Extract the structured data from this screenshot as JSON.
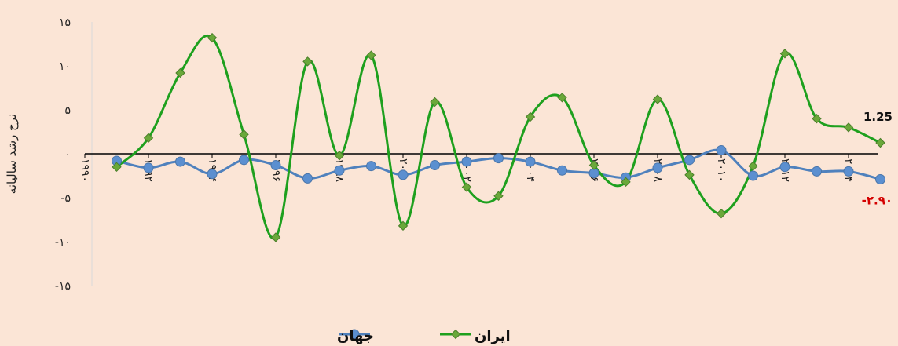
{
  "chart_data": {
    "type": "line",
    "ylabel": "نرخ رشد سالیانه",
    "ylim": [
      -15,
      15
    ],
    "y_ticks": [
      "۱۵",
      "۱۰",
      "۵",
      "۰",
      "-۵",
      "-۱۰",
      "-۱۵"
    ],
    "x_tick_labels": [
      "۱۹۹۰",
      "۱۹۹۲",
      "۱۹۹۴",
      "۱۹۹۶",
      "۱۹۹۸",
      "۲۰۰۰",
      "۲۰۰۲",
      "۲۰۰۴",
      "۲۰۰۶",
      "۲۰۰۸",
      "۲۰۱۰",
      "۲۰۱۲",
      "۲۰۱۴"
    ],
    "x": [
      1991,
      1992,
      1993,
      1994,
      1995,
      1996,
      1997,
      1998,
      1999,
      2000,
      2001,
      2002,
      2003,
      2004,
      2005,
      2006,
      2007,
      2008,
      2009,
      2010,
      2011,
      2012,
      2013,
      2014,
      2015
    ],
    "grid": false,
    "legend_position": "bottom",
    "series": [
      {
        "name": "ایران",
        "color": "#1ea01e",
        "marker_color": "#6aa83a",
        "marker": "diamond",
        "values": [
          -1.5,
          1.8,
          9.2,
          13.2,
          2.2,
          -9.5,
          10.5,
          -0.2,
          11.2,
          -8.2,
          5.9,
          -3.8,
          -4.8,
          4.2,
          6.4,
          -1.3,
          -3.2,
          6.2,
          -2.4,
          -6.8,
          -1.4,
          11.4,
          4.0,
          3.0,
          1.25
        ]
      },
      {
        "name": "جهان",
        "color": "#4f81bd",
        "marker_color": "#5b8fd0",
        "marker": "circle",
        "values": [
          -0.8,
          -1.6,
          -0.9,
          -2.3,
          -0.7,
          -1.3,
          -2.8,
          -1.9,
          -1.4,
          -2.4,
          -1.3,
          -0.9,
          -0.5,
          -0.9,
          -1.9,
          -2.2,
          -2.7,
          -1.6,
          -0.7,
          0.4,
          -2.5,
          -1.5,
          -2.0,
          -2.0,
          -2.9
        ]
      }
    ],
    "annotations": [
      {
        "text": "1.25",
        "series": "ایران",
        "color": "#111111"
      },
      {
        "text": "-۲.۹۰",
        "series": "جهان",
        "color": "#d40000"
      }
    ]
  }
}
